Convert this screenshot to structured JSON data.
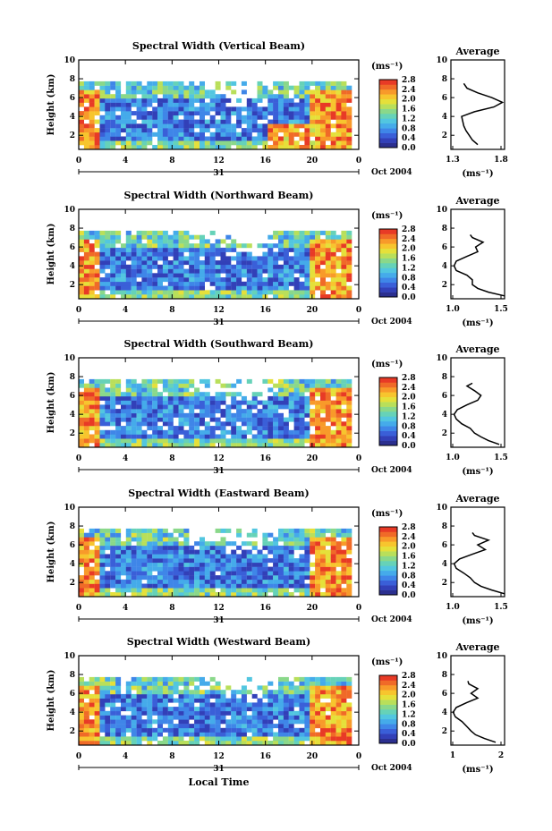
{
  "colorbar": {
    "unit": "(ms⁻¹)",
    "tick_labels": [
      "0.0",
      "0.4",
      "0.8",
      "1.2",
      "1.6",
      "2.0",
      "2.4",
      "2.8"
    ],
    "colors": [
      "#2b2f8f",
      "#3240b8",
      "#3a5fd8",
      "#3f86e8",
      "#45abea",
      "#52c6e0",
      "#66d2b8",
      "#8ad88a",
      "#b9df5a",
      "#e5e03a",
      "#f7c52e",
      "#f89a2a",
      "#f06a28",
      "#e83a26"
    ]
  },
  "shared": {
    "x_tick_labels": [
      "0",
      "4",
      "8",
      "12",
      "16",
      "20",
      "0"
    ],
    "date_label": "31",
    "month_year": "Oct 2004",
    "xlabel": "Local Time",
    "ylabel": "Height (km)",
    "y_tick_labels": [
      "2",
      "4",
      "6",
      "8",
      "10"
    ],
    "average_title": "Average",
    "average_xlabel": "(ms⁻¹)"
  },
  "chart_data": [
    {
      "type": "heatmap",
      "title": "Spectral Width (Vertical Beam)",
      "xlim": [
        0,
        24
      ],
      "ylim": [
        0.5,
        10
      ],
      "profile": {
        "type": "line",
        "xtick_labels": [
          "1.3",
          "1.8"
        ],
        "xlim": [
          1.3,
          1.8
        ],
        "height_km": [
          1.0,
          1.5,
          2.0,
          2.5,
          3.0,
          3.5,
          4.0,
          4.5,
          5.0,
          5.5,
          6.0,
          6.5,
          7.0,
          7.5
        ],
        "width_ms": [
          1.55,
          1.5,
          1.47,
          1.44,
          1.42,
          1.41,
          1.4,
          1.52,
          1.7,
          1.78,
          1.68,
          1.55,
          1.45,
          1.42
        ]
      }
    },
    {
      "type": "heatmap",
      "title": "Spectral Width (Northward Beam)",
      "xlim": [
        0,
        24
      ],
      "ylim": [
        0.5,
        10
      ],
      "profile": {
        "type": "line",
        "xtick_labels": [
          "1.0",
          "1.5"
        ],
        "xlim": [
          1.0,
          1.5
        ],
        "height_km": [
          0.8,
          1.2,
          1.6,
          2.0,
          2.5,
          3.0,
          3.5,
          4.0,
          4.5,
          5.0,
          5.5,
          6.0,
          6.5,
          7.0,
          7.3
        ],
        "width_ms": [
          1.5,
          1.35,
          1.25,
          1.2,
          1.2,
          1.15,
          1.05,
          1.03,
          1.05,
          1.15,
          1.25,
          1.23,
          1.3,
          1.2,
          1.18
        ]
      }
    },
    {
      "type": "heatmap",
      "title": "Spectral Width (Southward Beam)",
      "xlim": [
        0,
        24
      ],
      "ylim": [
        0.5,
        10
      ],
      "profile": {
        "type": "line",
        "xtick_labels": [
          "1.0",
          "1.5"
        ],
        "xlim": [
          1.0,
          1.5
        ],
        "height_km": [
          0.8,
          1.2,
          1.6,
          2.0,
          2.5,
          3.0,
          3.5,
          4.0,
          4.5,
          5.0,
          5.5,
          6.0,
          6.5,
          7.0,
          7.3
        ],
        "width_ms": [
          1.45,
          1.35,
          1.28,
          1.22,
          1.18,
          1.1,
          1.05,
          1.03,
          1.06,
          1.15,
          1.25,
          1.28,
          1.22,
          1.15,
          1.2
        ]
      }
    },
    {
      "type": "heatmap",
      "title": "Spectral Width (Eastward Beam)",
      "xlim": [
        0,
        24
      ],
      "ylim": [
        0.5,
        10
      ],
      "profile": {
        "type": "line",
        "xtick_labels": [
          "1.0",
          "1.5"
        ],
        "xlim": [
          1.0,
          1.5
        ],
        "height_km": [
          0.8,
          1.2,
          1.6,
          2.0,
          2.5,
          3.0,
          3.5,
          4.0,
          4.5,
          5.0,
          5.5,
          6.0,
          6.5,
          7.0,
          7.3
        ],
        "width_ms": [
          1.5,
          1.38,
          1.28,
          1.22,
          1.18,
          1.12,
          1.05,
          1.03,
          1.08,
          1.2,
          1.32,
          1.25,
          1.35,
          1.22,
          1.2
        ]
      }
    },
    {
      "type": "heatmap",
      "title": "Spectral Width (Westward Beam)",
      "xlim": [
        0,
        24
      ],
      "ylim": [
        0.5,
        10
      ],
      "profile": {
        "type": "line",
        "xtick_labels": [
          "1",
          "2"
        ],
        "xlim": [
          1.0,
          2.2
        ],
        "height_km": [
          0.8,
          1.2,
          1.6,
          2.0,
          2.5,
          3.0,
          3.5,
          4.0,
          4.5,
          5.0,
          5.5,
          6.0,
          6.5,
          7.0,
          7.3
        ],
        "width_ms": [
          2.0,
          1.75,
          1.55,
          1.45,
          1.35,
          1.25,
          1.1,
          1.05,
          1.12,
          1.35,
          1.6,
          1.45,
          1.6,
          1.4,
          1.38
        ]
      }
    }
  ]
}
